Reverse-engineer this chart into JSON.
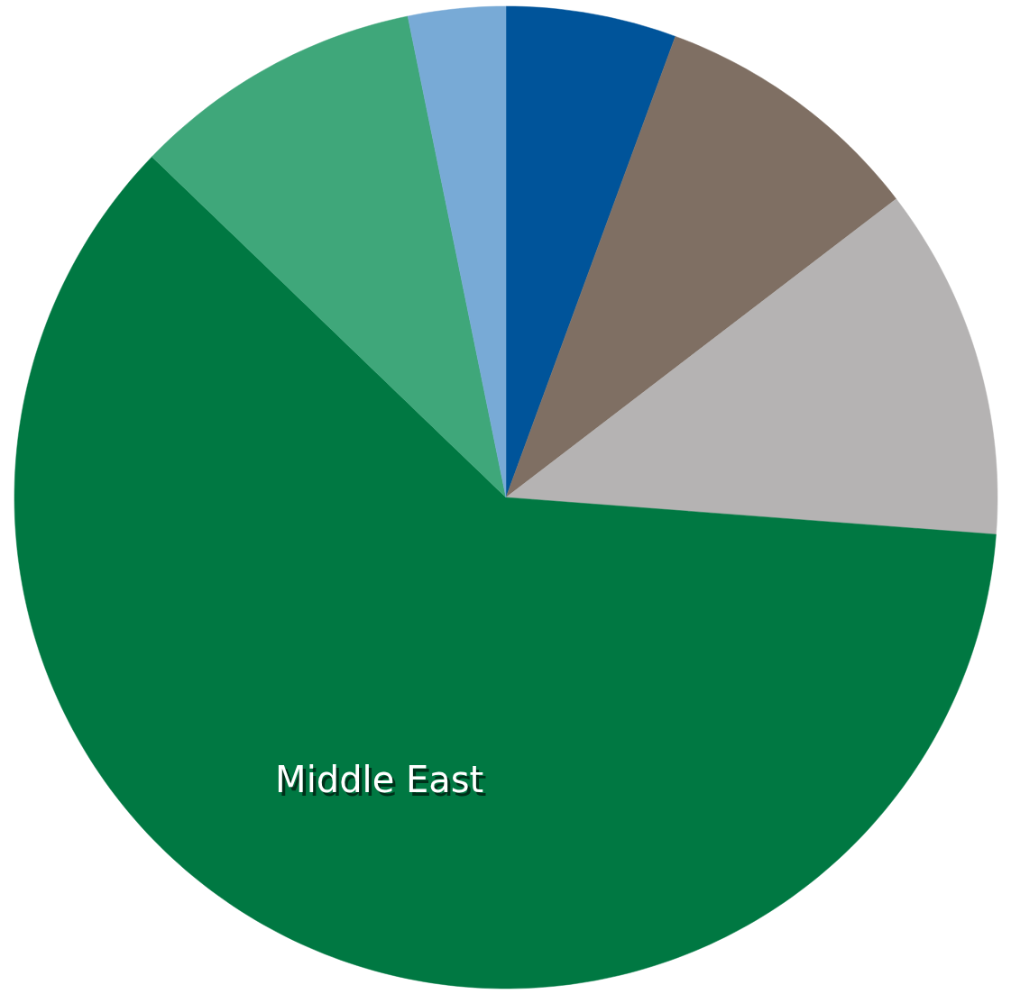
{
  "chart_data": {
    "type": "pie",
    "categories": [
      null,
      null,
      null,
      "Middle East",
      null,
      null
    ],
    "values": [
      5.6,
      9.0,
      11.6,
      61.0,
      9.6,
      3.2
    ],
    "colors": [
      "#00549a",
      "#7f6f63",
      "#b5b3b3",
      "#007842",
      "#3fa77a",
      "#78aad6"
    ]
  }
}
